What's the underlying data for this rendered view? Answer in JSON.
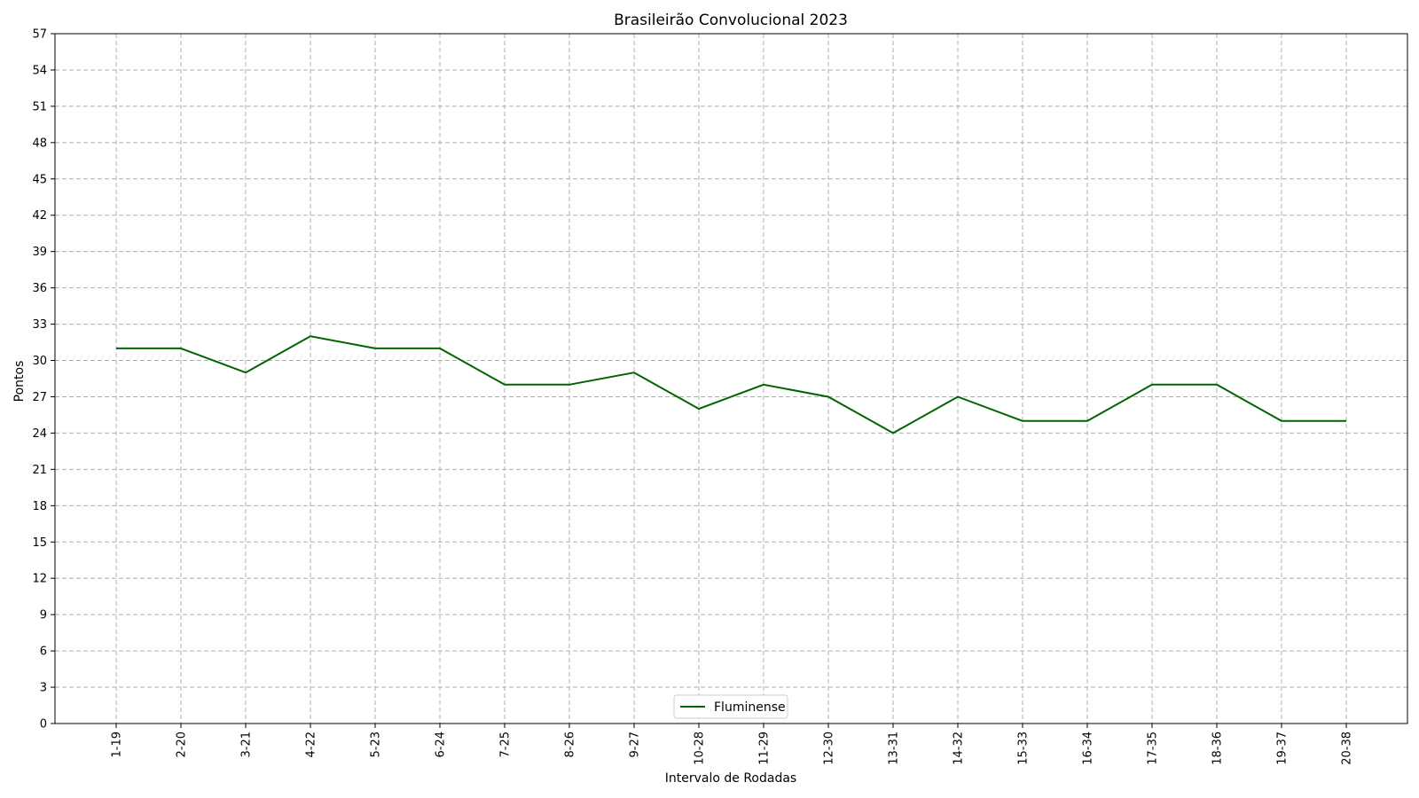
{
  "chart_data": {
    "type": "line",
    "title": "Brasileirão Convolucional 2023",
    "xlabel": "Intervalo de Rodadas",
    "ylabel": "Pontos",
    "categories": [
      "1-19",
      "2-20",
      "3-21",
      "4-22",
      "5-23",
      "6-24",
      "7-25",
      "8-26",
      "9-27",
      "10-28",
      "11-29",
      "12-30",
      "13-31",
      "14-32",
      "15-33",
      "16-34",
      "17-35",
      "18-36",
      "19-37",
      "20-38"
    ],
    "series": [
      {
        "name": "Fluminense",
        "color": "#006400",
        "values": [
          31,
          31,
          29,
          32,
          31,
          31,
          28,
          28,
          29,
          26,
          28,
          27,
          24,
          27,
          25,
          25,
          28,
          28,
          25,
          25
        ]
      }
    ],
    "ylim": [
      0,
      57
    ],
    "yticks": [
      0,
      3,
      6,
      9,
      12,
      15,
      18,
      21,
      24,
      27,
      30,
      33,
      36,
      39,
      42,
      45,
      48,
      51,
      54,
      57
    ],
    "grid": true,
    "legend_position": "bottom-center"
  }
}
